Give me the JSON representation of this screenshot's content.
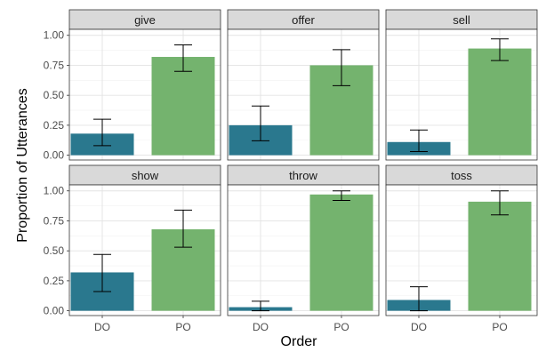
{
  "chart_data": {
    "type": "bar",
    "facet_layout": {
      "rows": 2,
      "cols": 3
    },
    "xlabel": "Order",
    "ylabel": "Proportion of Utterances",
    "categories": [
      "DO",
      "PO"
    ],
    "ylim": [
      0,
      1.0
    ],
    "yticks": [
      "0.00",
      "0.25",
      "0.50",
      "0.75",
      "1.00"
    ],
    "ytick_values": [
      0,
      0.25,
      0.5,
      0.75,
      1.0
    ],
    "grid": true,
    "error_bars": true,
    "colors": {
      "DO": "#2a788e",
      "PO": "#74b36e"
    },
    "panels": [
      {
        "title": "give",
        "values": [
          0.18,
          0.82
        ],
        "ci_low": [
          0.08,
          0.7
        ],
        "ci_high": [
          0.3,
          0.92
        ]
      },
      {
        "title": "offer",
        "values": [
          0.25,
          0.75
        ],
        "ci_low": [
          0.12,
          0.58
        ],
        "ci_high": [
          0.41,
          0.88
        ]
      },
      {
        "title": "sell",
        "values": [
          0.11,
          0.89
        ],
        "ci_low": [
          0.03,
          0.79
        ],
        "ci_high": [
          0.21,
          0.97
        ]
      },
      {
        "title": "show",
        "values": [
          0.32,
          0.68
        ],
        "ci_low": [
          0.16,
          0.53
        ],
        "ci_high": [
          0.47,
          0.84
        ]
      },
      {
        "title": "throw",
        "values": [
          0.03,
          0.97
        ],
        "ci_low": [
          0.0,
          0.92
        ],
        "ci_high": [
          0.08,
          1.0
        ]
      },
      {
        "title": "toss",
        "values": [
          0.09,
          0.91
        ],
        "ci_low": [
          0.0,
          0.8
        ],
        "ci_high": [
          0.2,
          1.0
        ]
      }
    ]
  }
}
